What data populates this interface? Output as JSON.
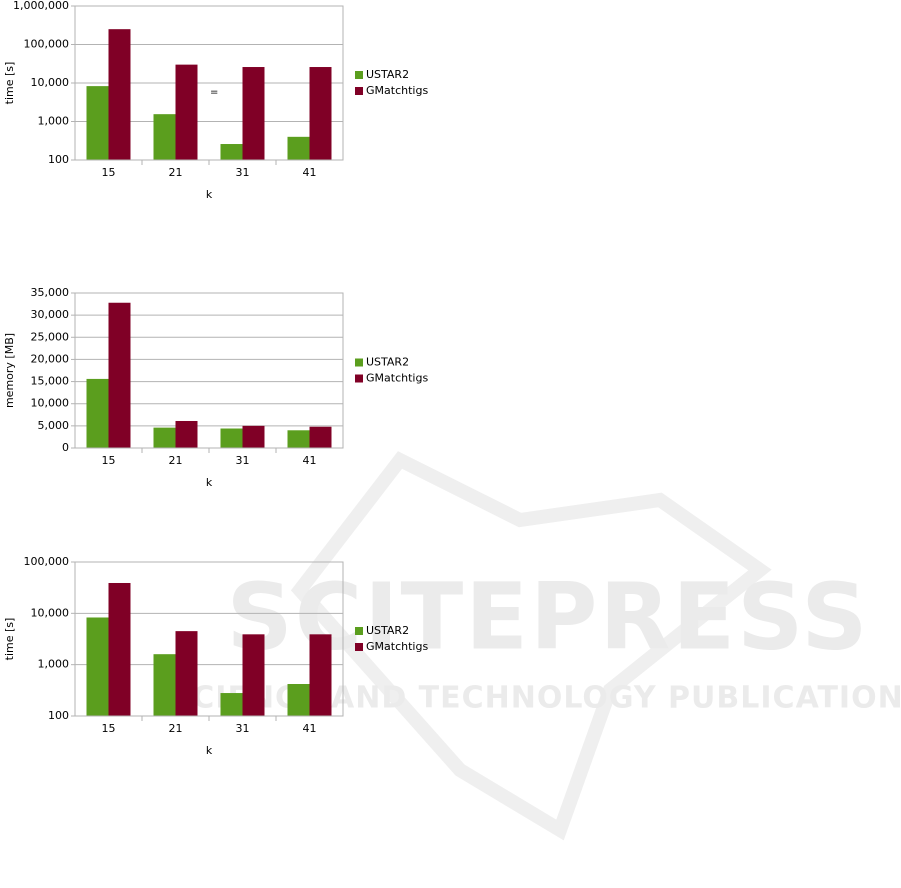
{
  "chart_data": [
    {
      "type": "bar",
      "y_label": "time [s]",
      "x_label": "k",
      "annotation": "=",
      "categories": [
        "15",
        "21",
        "31",
        "41"
      ],
      "series": [
        {
          "name": "USTAR2",
          "color": "#5b9e1e",
          "values": [
            8300,
            1550,
            260,
            400
          ]
        },
        {
          "name": "GMatchtigs",
          "color": "#800026",
          "values": [
            250000,
            30000,
            26000,
            26000
          ]
        }
      ],
      "log_scale": true,
      "ylim": [
        100,
        1000000
      ],
      "yticks": [
        100,
        {
          "value": 1000,
          "label": "1,000"
        },
        {
          "value": 10000,
          "label": "10,000"
        },
        {
          "value": 100000,
          "label": "100,000"
        },
        {
          "value": 1000000,
          "label": "1,000,000"
        }
      ],
      "grid": true,
      "legend": "right"
    },
    {
      "type": "bar",
      "y_label": "memory [MB]",
      "x_label": "k",
      "categories": [
        "15",
        "21",
        "31",
        "41"
      ],
      "series": [
        {
          "name": "USTAR2",
          "color": "#5b9e1e",
          "values": [
            15600,
            4600,
            4400,
            4000
          ]
        },
        {
          "name": "GMatchtigs",
          "color": "#800026",
          "values": [
            32800,
            6100,
            5000,
            4800
          ]
        }
      ],
      "log_scale": false,
      "ylim": [
        0,
        35000
      ],
      "yticks": [
        0,
        {
          "value": 5000,
          "label": "5,000"
        },
        {
          "value": 10000,
          "label": "10,000"
        },
        {
          "value": 15000,
          "label": "15,000"
        },
        {
          "value": 20000,
          "label": "20,000"
        },
        {
          "value": 25000,
          "label": "25,000"
        },
        {
          "value": 30000,
          "label": "30,000"
        },
        {
          "value": 35000,
          "label": "35,000"
        }
      ],
      "grid": true,
      "legend": "right"
    },
    {
      "type": "bar",
      "y_label": "time [s]",
      "x_label": "k",
      "categories": [
        "15",
        "21",
        "31",
        "41"
      ],
      "series": [
        {
          "name": "USTAR2",
          "color": "#5b9e1e",
          "values": [
            8300,
            1600,
            280,
            420
          ]
        },
        {
          "name": "GMatchtigs",
          "color": "#800026",
          "values": [
            39000,
            4500,
            3900,
            3900
          ]
        }
      ],
      "log_scale": true,
      "ylim": [
        100,
        100000
      ],
      "yticks": [
        100,
        {
          "value": 1000,
          "label": "1,000"
        },
        {
          "value": 10000,
          "label": "10,000"
        },
        {
          "value": 100000,
          "label": "100,000"
        }
      ],
      "grid": true,
      "legend": "right"
    }
  ],
  "watermark": {
    "title": "SCITEPRESS",
    "subtitle": "SCIENCE AND TECHNOLOGY PUBLICATIONS"
  }
}
